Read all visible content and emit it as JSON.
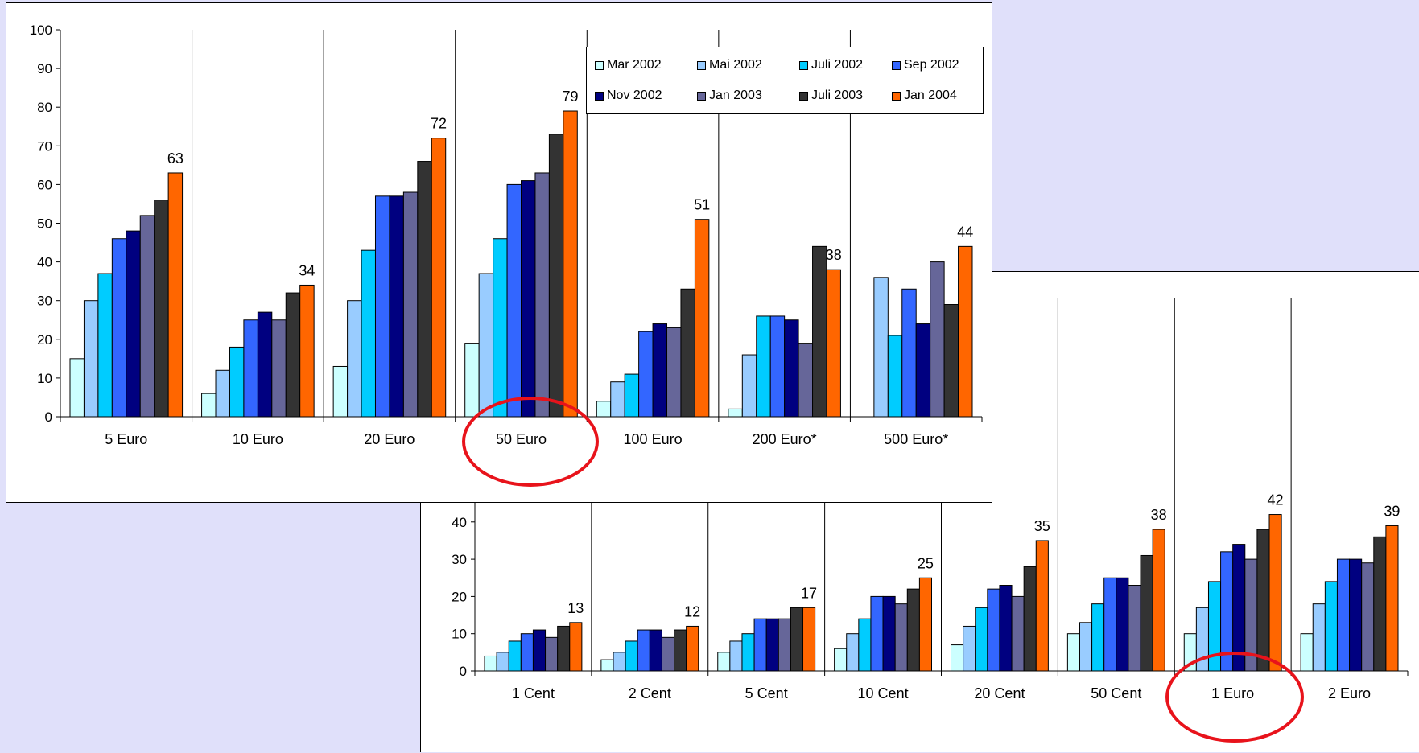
{
  "colors": {
    "page_background": "#e0e0fa",
    "highlight": "#e8131b",
    "series": [
      "#ccffff",
      "#99ccff",
      "#00ccff",
      "#3366ff",
      "#000080",
      "#666699",
      "#333333",
      "#ff6600"
    ]
  },
  "legend": {
    "items": [
      "Mar 2002",
      "Mai 2002",
      "Juli 2002",
      "Sep 2002",
      "Nov 2002",
      "Jan 2003",
      "Juli 2003",
      "Jan 2004"
    ]
  },
  "highlights": {
    "notes_category": "50 Euro",
    "coins_category": "1 Euro"
  },
  "chart_data": [
    {
      "type": "bar",
      "categories": [
        "5 Euro",
        "10 Euro",
        "20 Euro",
        "50 Euro",
        "100 Euro",
        "200 Euro*",
        "500 Euro*"
      ],
      "ylim": [
        0,
        100
      ],
      "yticks": [
        "0",
        "10",
        "20",
        "30",
        "40",
        "50",
        "60",
        "70",
        "80",
        "90",
        "100"
      ],
      "grid": false,
      "series": [
        {
          "name": "Mar 2002",
          "values": [
            15,
            6,
            13,
            19,
            4,
            2,
            null
          ]
        },
        {
          "name": "Mai 2002",
          "values": [
            30,
            12,
            30,
            37,
            9,
            16,
            36
          ]
        },
        {
          "name": "Juli 2002",
          "values": [
            37,
            18,
            43,
            46,
            11,
            26,
            21
          ]
        },
        {
          "name": "Sep 2002",
          "values": [
            46,
            25,
            57,
            60,
            22,
            26,
            33
          ]
        },
        {
          "name": "Nov 2002",
          "values": [
            48,
            27,
            57,
            61,
            24,
            25,
            24
          ]
        },
        {
          "name": "Jan 2003",
          "values": [
            52,
            25,
            58,
            63,
            23,
            19,
            40
          ]
        },
        {
          "name": "Juli 2003",
          "values": [
            56,
            32,
            66,
            73,
            33,
            44,
            29
          ]
        },
        {
          "name": "Jan 2004",
          "values": [
            63,
            34,
            72,
            79,
            51,
            38,
            44
          ]
        }
      ],
      "data_labels": [
        "63",
        "34",
        "72",
        "79",
        "51",
        "38",
        "44"
      ]
    },
    {
      "type": "bar",
      "categories": [
        "1 Cent",
        "2 Cent",
        "5 Cent",
        "10 Cent",
        "20 Cent",
        "50 Cent",
        "1 Euro",
        "2 Euro"
      ],
      "ylim": [
        0,
        100
      ],
      "yticks": [
        "0",
        "10",
        "20",
        "30",
        "40"
      ],
      "grid": false,
      "series": [
        {
          "name": "Mar 2002",
          "values": [
            4,
            3,
            5,
            6,
            7,
            10,
            10,
            10
          ]
        },
        {
          "name": "Mai 2002",
          "values": [
            5,
            5,
            8,
            10,
            12,
            13,
            17,
            18
          ]
        },
        {
          "name": "Juli 2002",
          "values": [
            8,
            8,
            10,
            14,
            17,
            18,
            24,
            24
          ]
        },
        {
          "name": "Sep 2002",
          "values": [
            10,
            11,
            14,
            20,
            22,
            25,
            32,
            30
          ]
        },
        {
          "name": "Nov 2002",
          "values": [
            11,
            11,
            14,
            20,
            23,
            25,
            34,
            30
          ]
        },
        {
          "name": "Jan 2003",
          "values": [
            9,
            9,
            14,
            18,
            20,
            23,
            30,
            29
          ]
        },
        {
          "name": "Juli 2003",
          "values": [
            12,
            11,
            17,
            22,
            28,
            31,
            38,
            36
          ]
        },
        {
          "name": "Jan 2004",
          "values": [
            13,
            12,
            17,
            25,
            35,
            38,
            42,
            39
          ]
        }
      ],
      "data_labels": [
        "13",
        "12",
        "17",
        "25",
        "35",
        "38",
        "42",
        "39"
      ]
    }
  ]
}
